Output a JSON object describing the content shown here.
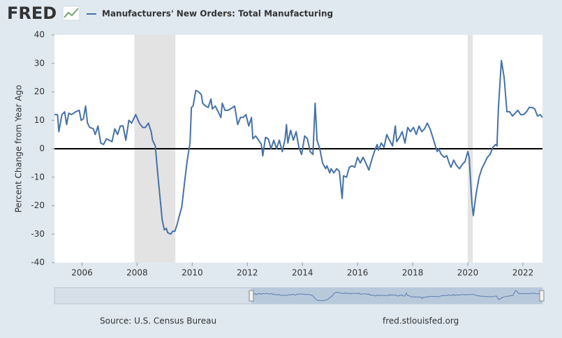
{
  "header": {
    "logo": "FRED"
  },
  "footer": {
    "source": "Source: U.S. Census Bureau",
    "url": "fred.stlouisfed.org"
  },
  "chart_data": {
    "type": "line",
    "ylabel": "Percent Change from Year Ago",
    "xlim": [
      2005,
      2022.71
    ],
    "xticks": [
      2006,
      2008,
      2010,
      2012,
      2014,
      2016,
      2018,
      2020,
      2022
    ],
    "ylim": [
      -40,
      40
    ],
    "yticks": [
      -40,
      -30,
      -20,
      -10,
      0,
      10,
      20,
      30,
      40
    ],
    "zero_line": true,
    "grid": false,
    "shaded_ranges": [
      [
        2007.9,
        2009.39
      ],
      [
        2020.0,
        2020.18
      ]
    ],
    "shade_color": "#e3e3e3",
    "x": [
      2005.0,
      2005.06,
      2005.11,
      2005.16,
      2005.27,
      2005.37,
      2005.44,
      2005.52,
      2005.62,
      2005.77,
      2005.9,
      2005.97,
      2006.05,
      2006.13,
      2006.2,
      2006.28,
      2006.41,
      2006.48,
      2006.58,
      2006.68,
      2006.78,
      2006.89,
      2007.09,
      2007.19,
      2007.29,
      2007.39,
      2007.49,
      2007.59,
      2007.7,
      2007.8,
      2007.95,
      2008.08,
      2008.2,
      2008.3,
      2008.41,
      2008.51,
      2008.56,
      2008.66,
      2008.76,
      2008.86,
      2008.91,
      2008.99,
      2009.06,
      2009.11,
      2009.22,
      2009.29,
      2009.37,
      2009.44,
      2009.52,
      2009.62,
      2009.72,
      2009.82,
      2009.92,
      2009.97,
      2010.03,
      2010.13,
      2010.23,
      2010.33,
      2010.38,
      2010.48,
      2010.58,
      2010.68,
      2010.73,
      2010.84,
      2010.94,
      2011.04,
      2011.09,
      2011.19,
      2011.29,
      2011.39,
      2011.54,
      2011.65,
      2011.75,
      2011.85,
      2011.95,
      2012.05,
      2012.15,
      2012.2,
      2012.3,
      2012.41,
      2012.51,
      2012.56,
      2012.66,
      2012.76,
      2012.86,
      2012.96,
      2013.06,
      2013.16,
      2013.27,
      2013.37,
      2013.42,
      2013.47,
      2013.57,
      2013.67,
      2013.77,
      2013.87,
      2013.97,
      2014.08,
      2014.18,
      2014.28,
      2014.38,
      2014.46,
      2014.53,
      2014.63,
      2014.73,
      2014.84,
      2014.89,
      2014.99,
      2015.04,
      2015.14,
      2015.24,
      2015.34,
      2015.44,
      2015.49,
      2015.6,
      2015.7,
      2015.8,
      2015.9,
      2016.0,
      2016.1,
      2016.2,
      2016.3,
      2016.41,
      2016.51,
      2016.61,
      2016.71,
      2016.76,
      2016.86,
      2016.96,
      2017.06,
      2017.16,
      2017.27,
      2017.37,
      2017.42,
      2017.52,
      2017.62,
      2017.72,
      2017.82,
      2017.92,
      2018.03,
      2018.13,
      2018.23,
      2018.33,
      2018.43,
      2018.53,
      2018.63,
      2018.73,
      2018.84,
      2018.89,
      2018.94,
      2019.04,
      2019.14,
      2019.24,
      2019.34,
      2019.39,
      2019.49,
      2019.6,
      2019.7,
      2019.8,
      2019.9,
      2020.0,
      2020.05,
      2020.15,
      2020.2,
      2020.3,
      2020.41,
      2020.51,
      2020.61,
      2020.71,
      2020.81,
      2020.91,
      2021.01,
      2021.06,
      2021.11,
      2021.22,
      2021.32,
      2021.42,
      2021.52,
      2021.62,
      2021.72,
      2021.82,
      2021.92,
      2022.03,
      2022.13,
      2022.23,
      2022.33,
      2022.43,
      2022.53,
      2022.63,
      2022.71
    ],
    "series": [
      {
        "name": "Manufacturers' New Orders: Total Manufacturing",
        "color": "#4572a7",
        "values": [
          12,
          12,
          12,
          6,
          12,
          13,
          8.5,
          12.5,
          12,
          13,
          13.5,
          10,
          10.5,
          15,
          9,
          7.5,
          7,
          5,
          8,
          2,
          1.5,
          3.5,
          2.5,
          7,
          5,
          8,
          8,
          3,
          10,
          9,
          12,
          9,
          7.5,
          7.5,
          9,
          6,
          3,
          1,
          -10,
          -20,
          -25,
          -28.5,
          -28,
          -29.5,
          -30,
          -29,
          -29,
          -27,
          -24,
          -20.5,
          -12,
          -4,
          2,
          14.5,
          15,
          20.5,
          20,
          19,
          16,
          15,
          14.5,
          17.5,
          14,
          15,
          13,
          11,
          16,
          13.5,
          13.5,
          14,
          15,
          8.5,
          11,
          11,
          12,
          8,
          11,
          3.5,
          4.5,
          3,
          1.5,
          -2.5,
          4,
          3.5,
          0,
          3,
          0,
          3,
          -1,
          3.5,
          8.5,
          2,
          6.5,
          3,
          6,
          0.5,
          -2,
          4.5,
          3.5,
          -1,
          -2,
          16,
          3,
          0,
          -5,
          -7,
          -6,
          -8.5,
          -7,
          -8.5,
          -7,
          -8,
          -17.5,
          -9.5,
          -10,
          -6.5,
          -6,
          -6.5,
          -3,
          -5,
          -3,
          -5,
          -7.5,
          -4,
          -1,
          1.5,
          -0.5,
          2,
          0.5,
          5,
          3,
          1,
          8,
          2.5,
          4,
          6,
          2,
          7.5,
          6,
          7.5,
          5,
          8,
          6,
          7,
          9,
          7,
          4,
          0.5,
          -1,
          0,
          -2,
          -3,
          -2.5,
          -5.5,
          -6.5,
          -4,
          -6,
          -7,
          -5.5,
          -4.5,
          -1,
          -3,
          -19,
          -23.5,
          -16,
          -10,
          -7,
          -5,
          -3,
          -2,
          0.5,
          1.5,
          1,
          14,
          31,
          25,
          13,
          13,
          11.5,
          12.5,
          13.5,
          12,
          12,
          13,
          14.5,
          14.5,
          14,
          11.5,
          12,
          11
        ]
      }
    ]
  }
}
